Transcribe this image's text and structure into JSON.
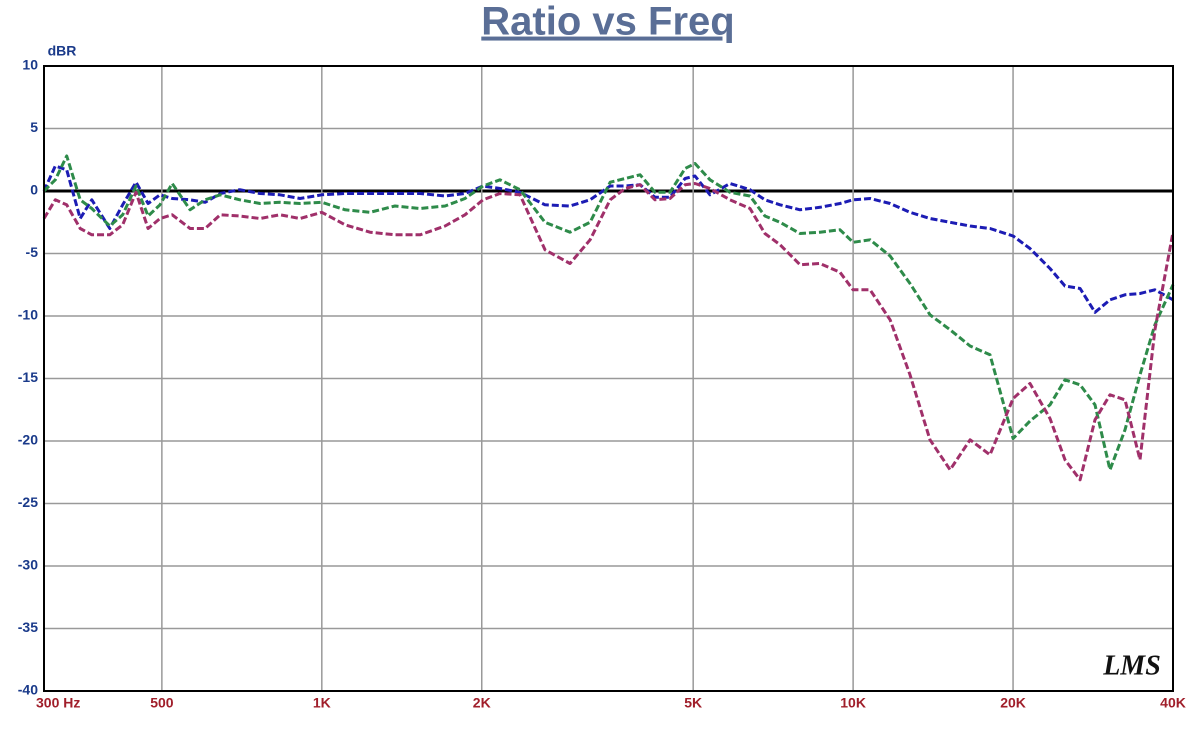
{
  "chart_data": {
    "type": "line",
    "title": "Ratio vs Freq",
    "y_label": "dBR",
    "watermark": "LMS",
    "x_scale": "log",
    "grid": true,
    "xlim": [
      300,
      40000
    ],
    "ylim": [
      -40,
      10
    ],
    "xticks": [
      {
        "value": 300,
        "label": "300  Hz"
      },
      500,
      {
        "value": 1000,
        "label": "1K"
      },
      {
        "value": 2000,
        "label": "2K"
      },
      {
        "value": 5000,
        "label": "5K"
      },
      {
        "value": 10000,
        "label": "10K"
      },
      {
        "value": 20000,
        "label": "20K"
      },
      {
        "value": 40000,
        "label": "40K"
      }
    ],
    "yticks": [
      10,
      5,
      0,
      -5,
      -10,
      -15,
      -20,
      -25,
      -30,
      -35,
      -40
    ],
    "x": [
      300,
      315,
      331,
      351,
      369,
      399,
      422,
      447,
      471,
      496,
      523,
      565,
      603,
      644,
      701,
      765,
      834,
      910,
      1000,
      1106,
      1232,
      1373,
      1531,
      1706,
      1860,
      2011,
      2165,
      2361,
      2631,
      2932,
      3199,
      3489,
      3723,
      3972,
      4238,
      4522,
      4827,
      5040,
      5378,
      5864,
      6395,
      6824,
      7283,
      7943,
      8663,
      9448,
      10000,
      10762,
      11737,
      12798,
      13957,
      15221,
      16600,
      18100,
      20000,
      21525,
      23473,
      25050,
      26738,
      28530,
      30446,
      32490,
      34672,
      36988,
      40000
    ],
    "series": [
      {
        "color": "#1c1cb4",
        "values": [
          0,
          2,
          1.7,
          -2.2,
          -0.7,
          -3,
          -1.1,
          0.7,
          -1,
          -0.3,
          -0.6,
          -0.7,
          -0.9,
          -0.2,
          0.1,
          -0.2,
          -0.3,
          -0.6,
          -0.3,
          -0.2,
          -0.2,
          -0.2,
          -0.2,
          -0.4,
          -0.2,
          0.4,
          0.2,
          -0.1,
          -1.1,
          -1.2,
          -0.7,
          0.4,
          0.4,
          0.5,
          -0.5,
          -0.5,
          1,
          1.2,
          -0.3,
          0.6,
          0.1,
          -0.7,
          -1.1,
          -1.5,
          -1.3,
          -1,
          -0.7,
          -0.6,
          -1,
          -1.7,
          -2.2,
          -2.5,
          -2.8,
          -3,
          -3.6,
          -4.6,
          -6.2,
          -7.6,
          -7.8,
          -9.7,
          -8.7,
          -8.3,
          -8.2,
          -7.9,
          -8.7
        ]
      },
      {
        "color": "#2e8b4a",
        "values": [
          0,
          0.9,
          2.8,
          -0.7,
          -1.4,
          -2.8,
          -1.9,
          0.4,
          -2,
          -1.1,
          0.6,
          -1.5,
          -0.7,
          -0.3,
          -0.7,
          -1,
          -0.9,
          -1,
          -0.9,
          -1.5,
          -1.7,
          -1.2,
          -1.4,
          -1.2,
          -0.6,
          0.4,
          0.9,
          0.1,
          -2.5,
          -3.3,
          -2.5,
          0.7,
          1,
          1.3,
          -0.1,
          -0.1,
          1.8,
          2.2,
          0.9,
          -0.1,
          -0.4,
          -2,
          -2.5,
          -3.4,
          -3.3,
          -3.1,
          -4.1,
          -3.9,
          -5.2,
          -7.4,
          -9.9,
          -11.1,
          -12.4,
          -13.1,
          -19.8,
          -18.4,
          -17.1,
          -15.1,
          -15.5,
          -17.1,
          -22.3,
          -19.1,
          -14.7,
          -10.7,
          -7.5
        ]
      },
      {
        "color": "#a0306a",
        "values": [
          -2.2,
          -0.7,
          -1.1,
          -3,
          -3.5,
          -3.5,
          -2.7,
          -0.1,
          -3,
          -2.2,
          -1.9,
          -3,
          -3,
          -1.9,
          -2,
          -2.2,
          -1.9,
          -2.2,
          -1.7,
          -2.7,
          -3.3,
          -3.5,
          -3.5,
          -2.8,
          -1.9,
          -0.7,
          -0.2,
          -0.3,
          -4.7,
          -5.8,
          -3.9,
          -0.7,
          0.2,
          0.5,
          -0.7,
          -0.6,
          0.5,
          0.6,
          0.2,
          -0.7,
          -1.4,
          -3.4,
          -4.3,
          -5.9,
          -5.8,
          -6.5,
          -7.9,
          -7.9,
          -10.3,
          -14.7,
          -19.9,
          -22.3,
          -19.9,
          -21.1,
          -16.6,
          -15.4,
          -18.2,
          -21.5,
          -23.1,
          -18.3,
          -16.3,
          -16.7,
          -21.5,
          -11.1,
          -3.3
        ]
      }
    ]
  }
}
